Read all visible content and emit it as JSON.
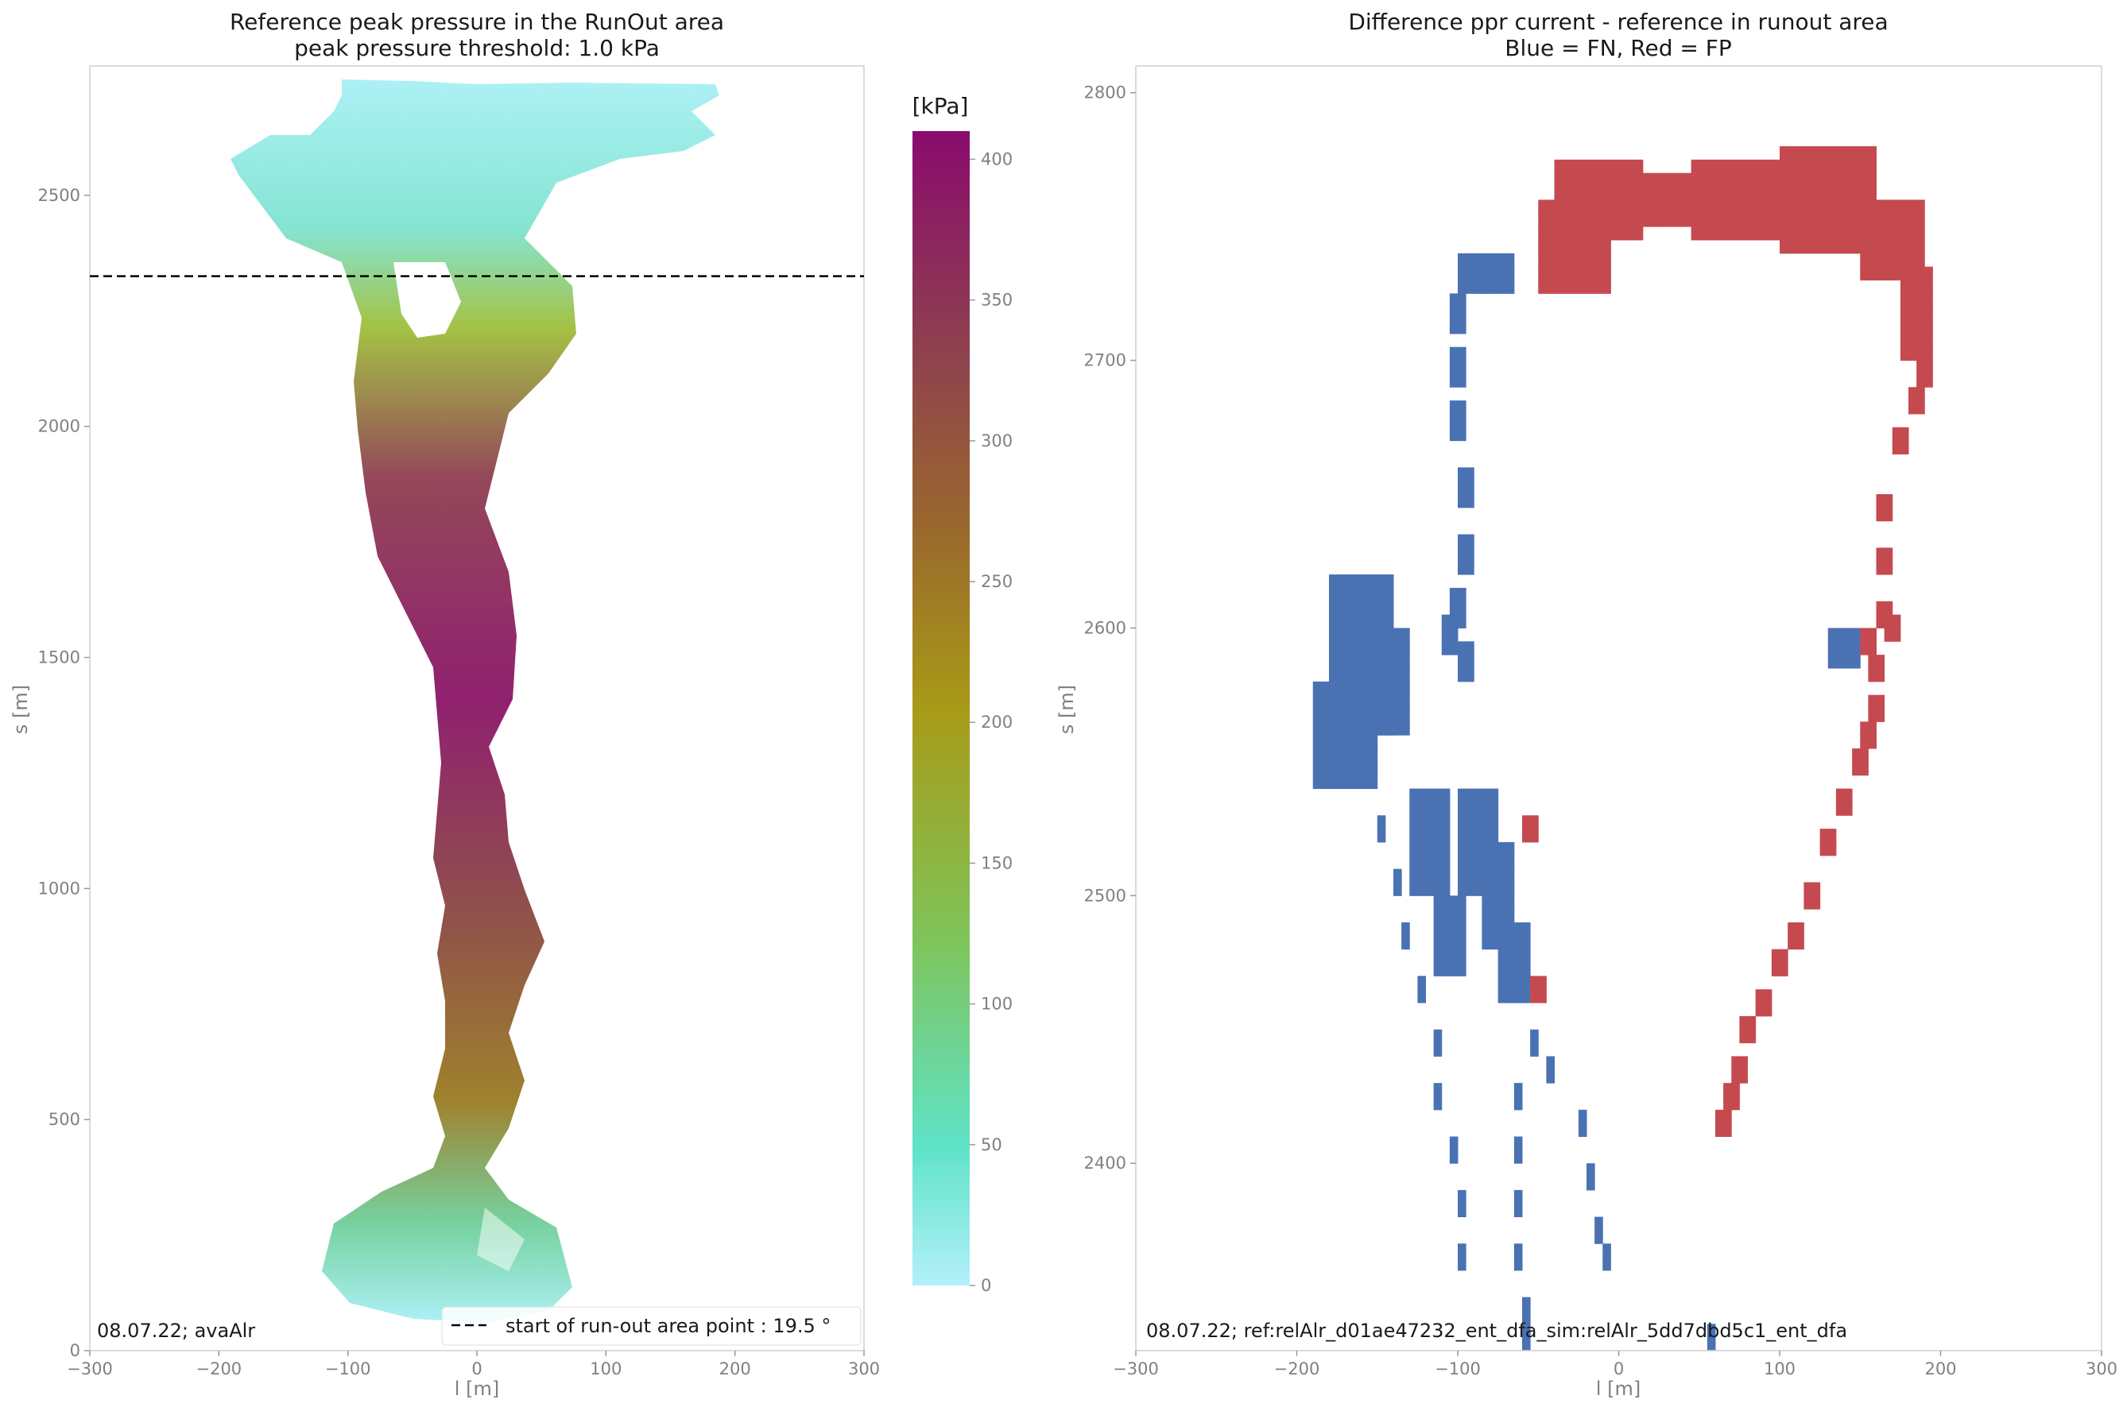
{
  "chart_data": [
    {
      "type": "heatmap",
      "title": "Reference peak pressure in the RunOut area",
      "subtitle": "peak pressure threshold: 1.0 kPa",
      "xlabel": "l [m]",
      "ylabel": "s [m]",
      "xlim": [
        -300,
        300
      ],
      "ylim": [
        0,
        2780
      ],
      "xticks": [
        -300,
        -200,
        -100,
        0,
        100,
        200,
        300
      ],
      "xtick_labels": [
        "−300",
        "−200",
        "−100",
        "0",
        "100",
        "200",
        "300"
      ],
      "yticks": [
        0,
        500,
        1000,
        1500,
        2000,
        2500
      ],
      "ytick_labels": [
        "0",
        "500",
        "1000",
        "1500",
        "2000",
        "2500"
      ],
      "colorbar": {
        "label": "[kPa]",
        "range": [
          0,
          410
        ],
        "ticks": [
          0,
          50,
          100,
          150,
          200,
          250,
          300,
          350,
          400
        ],
        "tick_labels": [
          "0",
          "50",
          "100",
          "150",
          "200",
          "250",
          "300",
          "350",
          "400"
        ],
        "colors": [
          "#b3f0fa",
          "#5fe3c8",
          "#7fc45a",
          "#a89a17",
          "#9a6a2c",
          "#8e3e50",
          "#8a0b6e"
        ]
      },
      "runout_line": {
        "s": 2325,
        "label": "start of run-out area point : 19.5 °"
      },
      "annotation": "08.07.22; avaAlr",
      "grid": false,
      "legend_position": "bottom-right"
    },
    {
      "type": "heatmap",
      "title": "Difference ppr current - reference in runout area",
      "subtitle": "Blue = FN, Red = FP",
      "xlabel": "l [m]",
      "ylabel": "s [m]",
      "xlim": [
        -300,
        300
      ],
      "ylim": [
        2330,
        2810
      ],
      "xticks": [
        -300,
        -200,
        -100,
        0,
        100,
        200,
        300
      ],
      "xtick_labels": [
        "−300",
        "−200",
        "−100",
        "0",
        "100",
        "200",
        "300"
      ],
      "yticks": [
        2400,
        2500,
        2600,
        2700,
        2800
      ],
      "ytick_labels": [
        "2400",
        "2500",
        "2600",
        "2700",
        "2800"
      ],
      "categories": [
        "FN",
        "FP"
      ],
      "colors": {
        "FN": "#4a72b3",
        "FP": "#c54a50"
      },
      "annotation": "08.07.22; ref:relAlr_d01ae47232_ent_dfa_sim:relAlr_5dd7dbd5c1_ent_dfa",
      "grid": false
    }
  ]
}
